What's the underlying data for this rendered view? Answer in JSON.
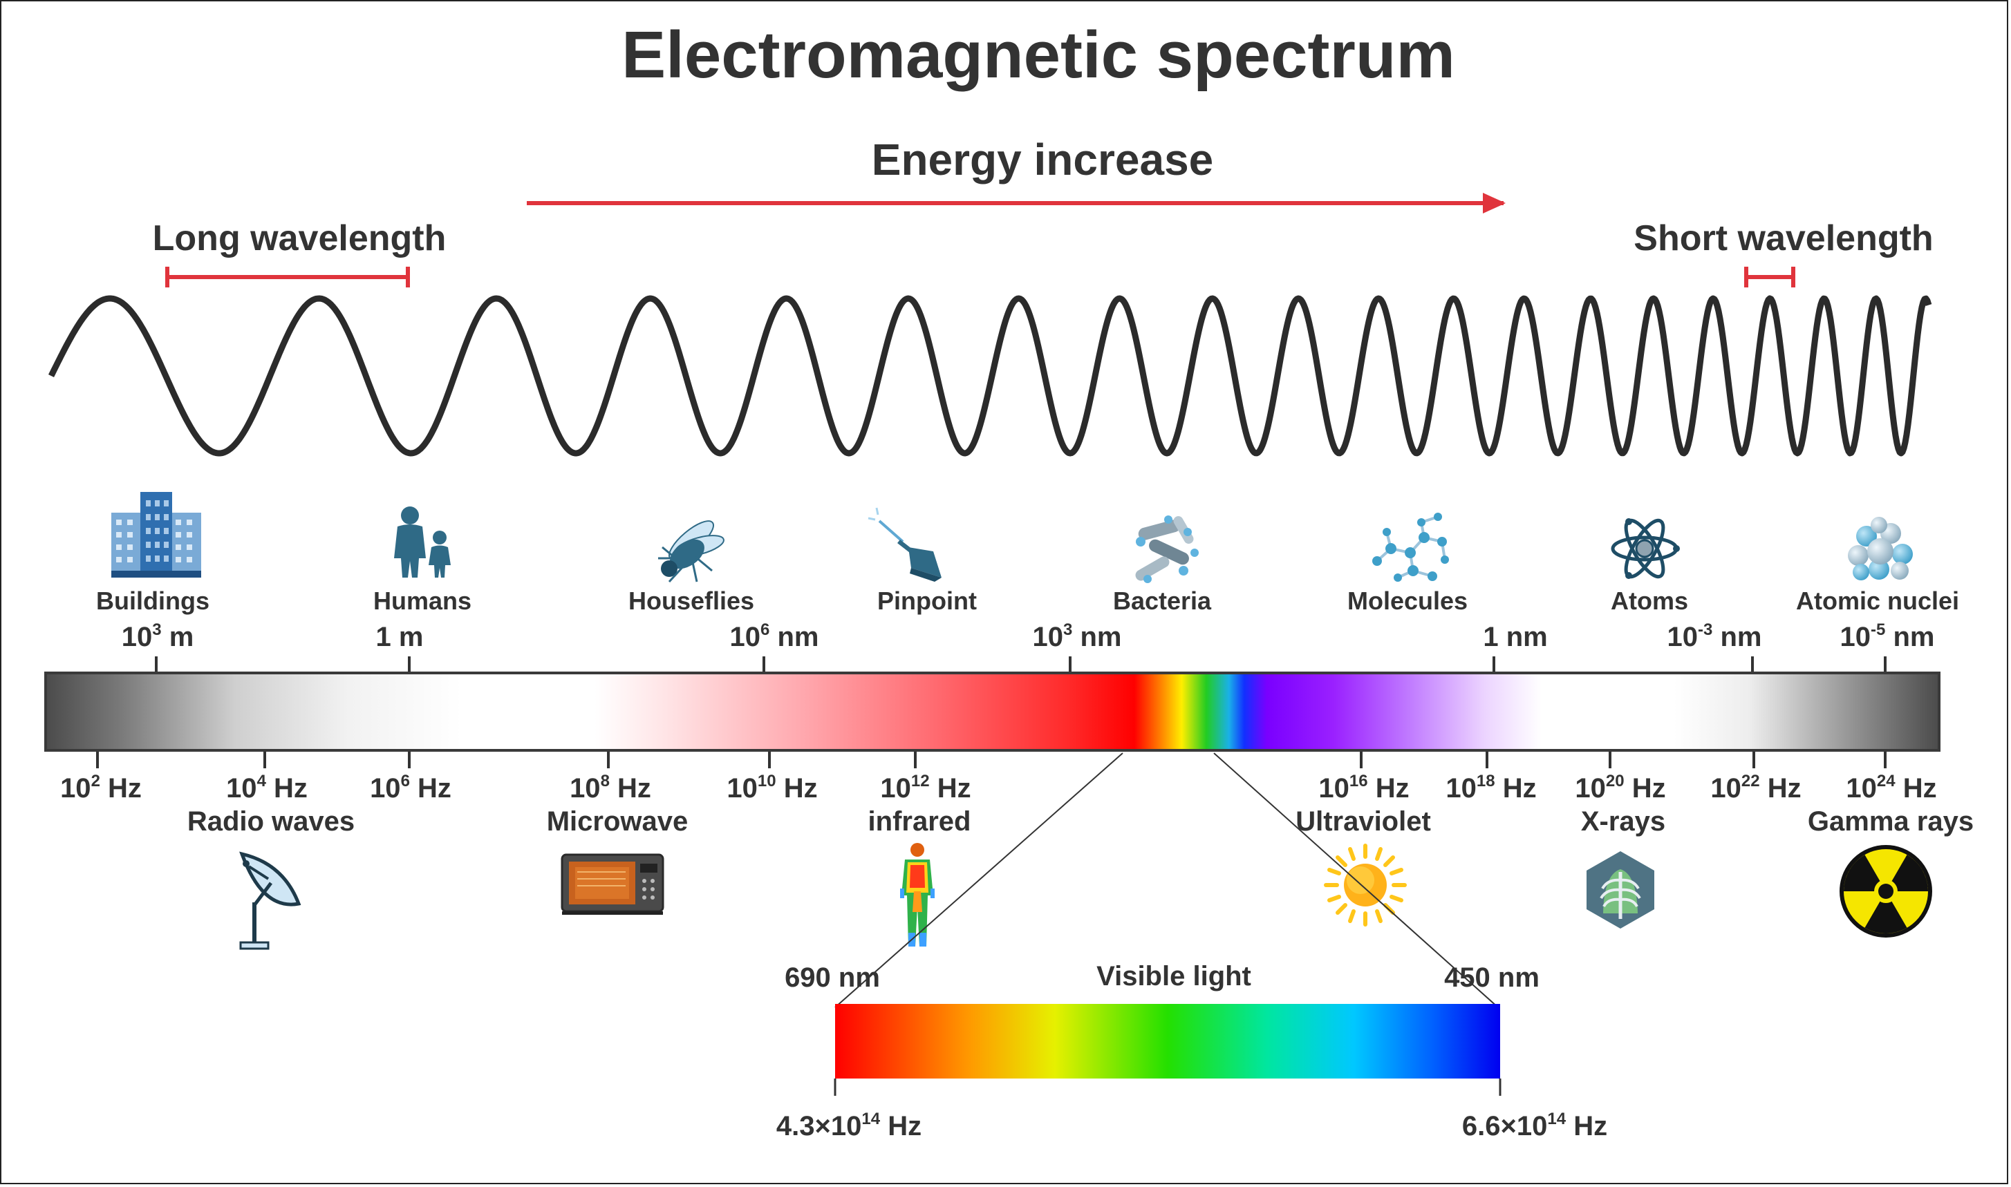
{
  "title": "Electromagnetic spectrum",
  "energy_label": "Energy increase",
  "long_wavelength_label": "Long wavelength",
  "short_wavelength_label": "Short wavelength",
  "colors": {
    "text": "#333333",
    "accent_red": "#e0343c",
    "wave": "#2b2b2b"
  },
  "scale_objects": [
    {
      "label": "Buildings",
      "icon": "buildings-icon"
    },
    {
      "label": "Humans",
      "icon": "humans-icon"
    },
    {
      "label": "Houseflies",
      "icon": "housefly-icon"
    },
    {
      "label": "Pinpoint",
      "icon": "pinpoint-icon"
    },
    {
      "label": "Bacteria",
      "icon": "bacteria-icon"
    },
    {
      "label": "Molecules",
      "icon": "molecule-icon"
    },
    {
      "label": "Atoms",
      "icon": "atom-icon"
    },
    {
      "label": "Atomic nuclei",
      "icon": "nucleus-icon"
    }
  ],
  "wavelengths": [
    {
      "base": "10",
      "exp": "3",
      "unit": "m"
    },
    {
      "base": "1",
      "exp": "",
      "unit": "m"
    },
    {
      "base": "10",
      "exp": "6",
      "unit": "nm"
    },
    {
      "base": "10",
      "exp": "3",
      "unit": "nm"
    },
    {
      "base": "1",
      "exp": "",
      "unit": "nm"
    },
    {
      "base": "10",
      "exp": "-3",
      "unit": "nm"
    },
    {
      "base": "10",
      "exp": "-5",
      "unit": "nm"
    }
  ],
  "frequencies": [
    {
      "base": "10",
      "exp": "2",
      "unit": "Hz"
    },
    {
      "base": "10",
      "exp": "4",
      "unit": "Hz"
    },
    {
      "base": "10",
      "exp": "6",
      "unit": "Hz"
    },
    {
      "base": "10",
      "exp": "8",
      "unit": "Hz"
    },
    {
      "base": "10",
      "exp": "10",
      "unit": "Hz"
    },
    {
      "base": "10",
      "exp": "12",
      "unit": "Hz"
    },
    {
      "base": "10",
      "exp": "16",
      "unit": "Hz"
    },
    {
      "base": "10",
      "exp": "18",
      "unit": "Hz"
    },
    {
      "base": "10",
      "exp": "20",
      "unit": "Hz"
    },
    {
      "base": "10",
      "exp": "22",
      "unit": "Hz"
    },
    {
      "base": "10",
      "exp": "24",
      "unit": "Hz"
    }
  ],
  "bands": [
    {
      "label": "Radio waves",
      "icon": "satellite-dish-icon"
    },
    {
      "label": "Microwave",
      "icon": "microwave-icon"
    },
    {
      "label": "infrared",
      "icon": "thermal-body-icon"
    },
    {
      "label": "Ultraviolet",
      "icon": "sun-icon"
    },
    {
      "label": "X-rays",
      "icon": "xray-chest-icon"
    },
    {
      "label": "Gamma rays",
      "icon": "radiation-icon"
    }
  ],
  "visible": {
    "title": "Visible light",
    "left_wavelength": "690 nm",
    "right_wavelength": "450 nm",
    "left_freq": {
      "base": "4.3×10",
      "exp": "14",
      "unit": "Hz"
    },
    "right_freq": {
      "base": "6.6×10",
      "exp": "14",
      "unit": "Hz"
    }
  }
}
